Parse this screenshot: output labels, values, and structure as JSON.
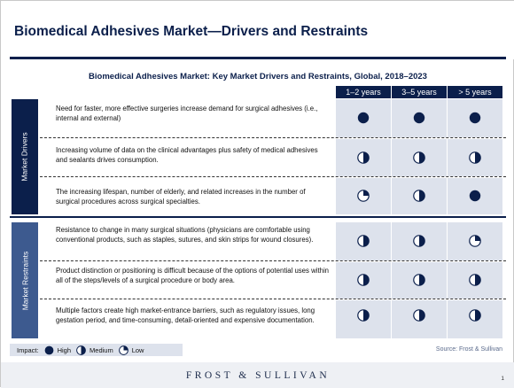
{
  "header": {
    "title": "Biomedical Adhesives Market—Drivers and Restraints"
  },
  "table": {
    "title": "Biomedical Adhesives Market: Key Market Drivers and Restraints, Global, 2018–2023",
    "columns": [
      "1–2 years",
      "3–5 years",
      "> 5 years"
    ],
    "sections": [
      {
        "label": "Market Drivers",
        "rows": [
          {
            "text": "Need for faster, more effective surgeries increase demand for surgical adhesives (i.e., internal and external)",
            "impacts": [
              "high",
              "high",
              "high"
            ]
          },
          {
            "text": "Increasing volume of data on the clinical advantages plus safety of medical adhesives and sealants drives consumption.",
            "impacts": [
              "medium",
              "medium",
              "medium"
            ]
          },
          {
            "text": "The increasing lifespan, number of elderly, and related increases in the number of surgical procedures across surgical specialties.",
            "impacts": [
              "low",
              "medium",
              "high"
            ]
          }
        ]
      },
      {
        "label": "Market Restraints",
        "rows": [
          {
            "text": "Resistance to change in many surgical situations (physicians are comfortable using conventional products, such as staples, sutures, and skin strips for wound closures).",
            "impacts": [
              "medium",
              "medium",
              "low"
            ]
          },
          {
            "text": "Product distinction  or positioning is difficult because of the options of potential uses within all of the steps/levels of a surgical procedure or body area.",
            "impacts": [
              "medium",
              "medium",
              "medium"
            ]
          },
          {
            "text": "Multiple factors create high market-entrance barriers, such as regulatory issues, long gestation period, and time-consuming, detail-oriented and expensive documentation.",
            "impacts": [
              "medium",
              "medium",
              "medium"
            ]
          }
        ]
      }
    ]
  },
  "legend": {
    "title": "Impact:",
    "high": "High",
    "medium": "Medium",
    "low": "Low"
  },
  "source": "Source: Frost & Sullivan",
  "footer": {
    "brand": "FROST & SULLIVAN",
    "page": "1"
  },
  "colors": {
    "navy": "#0b1f4b",
    "restraint_blue": "#3d5a8f",
    "cell_bg": "#dde2ec"
  }
}
